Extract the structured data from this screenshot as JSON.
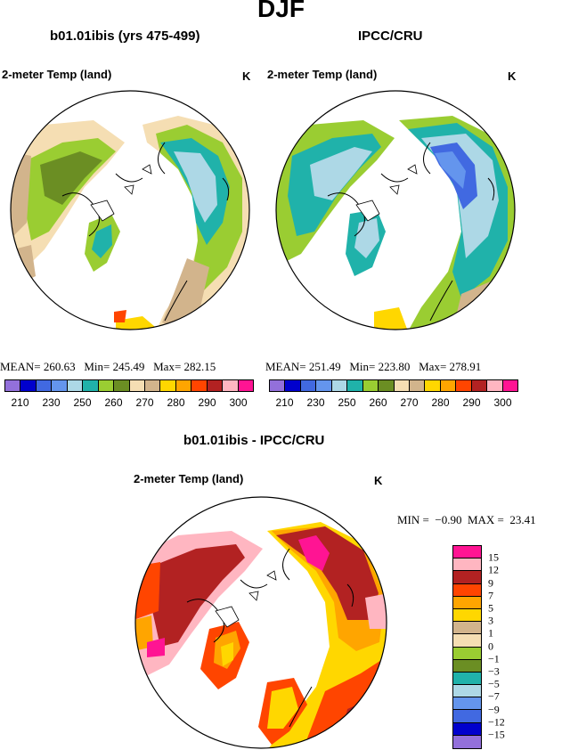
{
  "title": "DJF",
  "top_left": {
    "title": "b01.01ibis (yrs 475-499)",
    "variable": "2-meter Temp (land)",
    "unit": "K",
    "stats": {
      "mean_label": "MEAN=",
      "mean": "260.63",
      "min_label": "Min=",
      "min": "245.49",
      "max_label": "Max=",
      "max": "282.15"
    }
  },
  "top_right": {
    "title": "IPCC/CRU",
    "variable": "2-meter Temp (land)",
    "unit": "K",
    "stats": {
      "mean_label": "MEAN=",
      "mean": "251.49",
      "min_label": "Min=",
      "min": "223.80",
      "max_label": "Max=",
      "max": "278.91"
    }
  },
  "bottom": {
    "title": "b01.01ibis - IPCC/CRU",
    "variable": "2-meter Temp (land)",
    "unit": "K",
    "stats": {
      "min_label": "MIN =",
      "min": "−0.90",
      "max_label": "MAX =",
      "max": "23.41"
    }
  },
  "abs_colorbar": {
    "colors": [
      "#9370db",
      "#0000cd",
      "#4169e1",
      "#6495ed",
      "#add8e6",
      "#20b2aa",
      "#9acd32",
      "#6b8e23",
      "#f5deb3",
      "#d2b48c",
      "#ffd700",
      "#ffa500",
      "#ff4500",
      "#b22222",
      "#ffb6c1",
      "#ff1493"
    ],
    "labels": [
      "210",
      "230",
      "250",
      "260",
      "270",
      "280",
      "290",
      "300"
    ]
  },
  "diff_colorbar": {
    "colors": [
      "#ff1493",
      "#ffb6c1",
      "#b22222",
      "#ff4500",
      "#ffa500",
      "#ffd700",
      "#d2b48c",
      "#f5deb3",
      "#9acd32",
      "#6b8e23",
      "#20b2aa",
      "#add8e6",
      "#6495ed",
      "#4169e1",
      "#0000cd",
      "#9370db"
    ],
    "labels": [
      "15",
      "12",
      "9",
      "7",
      "5",
      "3",
      "1",
      "0",
      "−1",
      "−3",
      "−5",
      "−7",
      "−9",
      "−12",
      "−15"
    ]
  }
}
